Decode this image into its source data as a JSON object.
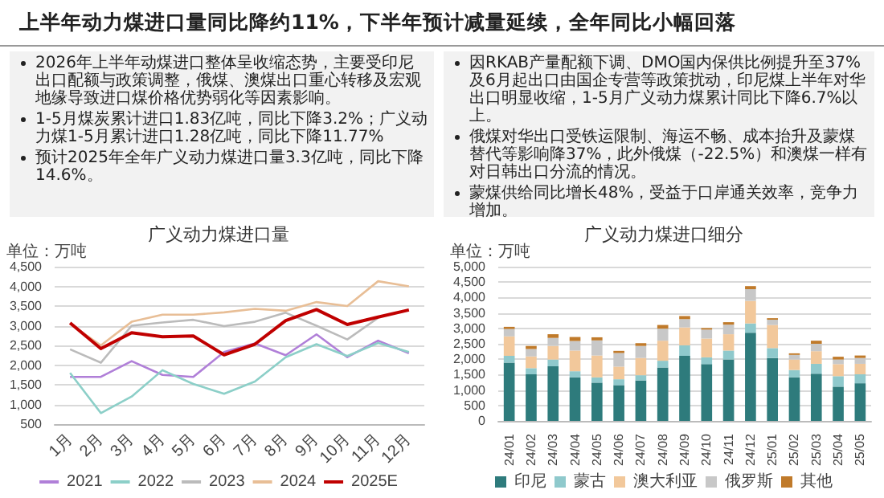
{
  "chart_data": [
    {
      "type": "line",
      "title": "广义动力煤进口量",
      "ylabel": "单位：万吨",
      "annotations": [
        "上半年动力煤进口量同比降约11%，下半年预计减量延续，全年同比小幅回落",
        "2026年上半年动煤进口整体呈收缩态势，主要受印尼出口配额与政策调整，俄煤、澳煤出口重心转移及宏观地缘导致进口煤价格优势弱化等因素影响。",
        "1-5月煤炭累计进口1.83亿吨，同比下降3.2%；广义动力煤1-5月累计进口1.28亿吨，同比下降11.77%",
        "预计2025年全年广义动力煤进口量3.3亿吨，同比下降14.6%。"
      ],
      "categories": [
        "1月",
        "2月",
        "3月",
        "4月",
        "5月",
        "6月",
        "7月",
        "8月",
        "9月",
        "10月",
        "11月",
        "12月"
      ],
      "series": [
        {
          "name": "2021",
          "color": "#b07fd8",
          "values": [
            1700,
            1700,
            2100,
            1750,
            1700,
            2330,
            2550,
            2250,
            2780,
            2200,
            2620,
            2300
          ]
        },
        {
          "name": "2022",
          "color": "#8ccfc8",
          "values": [
            1800,
            780,
            1200,
            1870,
            1520,
            1270,
            1580,
            2200,
            2530,
            2230,
            2560,
            2330
          ]
        },
        {
          "name": "2023",
          "color": "#bbbbbb",
          "values": [
            2400,
            2060,
            3000,
            3080,
            3150,
            2990,
            3100,
            3330,
            3000,
            2650,
            3200,
            null
          ]
        },
        {
          "name": "2024",
          "color": "#e8be96",
          "values": [
            3050,
            2500,
            3100,
            3280,
            3280,
            3340,
            3430,
            3380,
            3600,
            3500,
            4130,
            4000
          ]
        },
        {
          "name": "2025E",
          "color": "#c00000",
          "values": [
            3070,
            2420,
            2820,
            2720,
            2740,
            2260,
            2530,
            3130,
            3410,
            3030,
            3220,
            3400
          ]
        }
      ],
      "ylim": [
        500,
        4500
      ],
      "yticks": [
        {
          "value": 500,
          "label": "500"
        },
        {
          "value": 1000,
          "label": "1,000"
        },
        {
          "value": 1500,
          "label": "1,500"
        },
        {
          "value": 2000,
          "label": "2,000"
        },
        {
          "value": 2500,
          "label": "2,500"
        },
        {
          "value": 3000,
          "label": "3,000"
        },
        {
          "value": 3500,
          "label": "3,500"
        },
        {
          "value": 4000,
          "label": "4,000"
        },
        {
          "value": 4500,
          "label": "4,500"
        }
      ],
      "grid": "y",
      "legend": "bottom",
      "marker": "none"
    },
    {
      "type": "bar",
      "title": "广义动力煤进口细分",
      "ylabel": "单位：万吨",
      "stacked": true,
      "annotations": [
        "因RKAB产量配额下调、DMO国内保供比例提升至37%及6月起出口由国企专营等政策扰动，印尼煤上半年对华出口明显收缩，1-5月广义动力煤累计同比下降6.7%以上。",
        "俄煤对华出口受铁运限制、海运不畅、成本抬升及蒙煤替代等影响降37%，此外俄煤（-22.5%）和澳煤一样有对日韩出口分流的情况。",
        "蒙煤供给同比增长48%，受益于口岸通关效率，竞争力增加。"
      ],
      "categories": [
        "24/01",
        "24/02",
        "24/03",
        "24/04",
        "24/05",
        "24/06",
        "24/07",
        "24/08",
        "24/09",
        "24/10",
        "24/11",
        "24/12",
        "25/01",
        "25/02",
        "25/03",
        "25/04",
        "25/05"
      ],
      "series": [
        {
          "name": "印尼",
          "color": "#2e7b7c",
          "values": [
            1890,
            1510,
            1770,
            1410,
            1240,
            1160,
            1310,
            1730,
            2110,
            1840,
            1990,
            2860,
            2040,
            1410,
            1530,
            1110,
            1220
          ]
        },
        {
          "name": "蒙古",
          "color": "#8fc9cc",
          "values": [
            220,
            200,
            220,
            200,
            170,
            190,
            170,
            220,
            340,
            220,
            290,
            300,
            320,
            240,
            320,
            340,
            290
          ]
        },
        {
          "name": "澳大利亚",
          "color": "#f2c89b",
          "values": [
            630,
            380,
            440,
            670,
            710,
            410,
            560,
            650,
            580,
            610,
            530,
            730,
            750,
            340,
            410,
            390,
            340
          ]
        },
        {
          "name": "俄罗斯",
          "color": "#c8c8c8",
          "values": [
            240,
            240,
            260,
            310,
            490,
            440,
            390,
            390,
            270,
            290,
            310,
            380,
            170,
            150,
            240,
            150,
            190
          ]
        },
        {
          "name": "其他",
          "color": "#c07a2a",
          "values": [
            70,
            100,
            120,
            130,
            100,
            70,
            90,
            120,
            100,
            50,
            80,
            100,
            50,
            50,
            100,
            90,
            80
          ]
        }
      ],
      "ylim": [
        0,
        5000
      ],
      "yticks": [
        {
          "value": 0,
          "label": "0"
        },
        {
          "value": 500,
          "label": "500"
        },
        {
          "value": 1000,
          "label": "1,000"
        },
        {
          "value": 1500,
          "label": "1,500"
        },
        {
          "value": 2000,
          "label": "2,000"
        },
        {
          "value": 2500,
          "label": "2,500"
        },
        {
          "value": 3000,
          "label": "3,000"
        },
        {
          "value": 3500,
          "label": "3,500"
        },
        {
          "value": 4000,
          "label": "4,000"
        },
        {
          "value": 4500,
          "label": "4,500"
        },
        {
          "value": 5000,
          "label": "5,000"
        }
      ],
      "grid": "y",
      "legend": "bottom"
    }
  ]
}
